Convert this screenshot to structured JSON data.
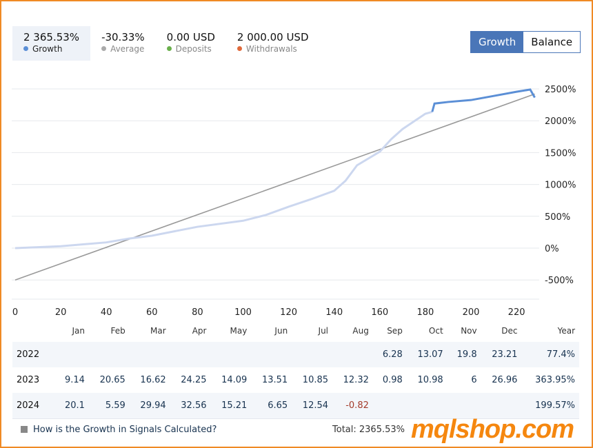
{
  "stats": [
    {
      "value": "2 365.53%",
      "label": "Growth",
      "color": "#5b8fd6"
    },
    {
      "value": "-30.33%",
      "label": "Average",
      "color": "#aaaaaa"
    },
    {
      "value": "0.00 USD",
      "label": "Deposits",
      "color": "#6ab04c"
    },
    {
      "value": "2 000.00 USD",
      "label": "Withdrawals",
      "color": "#e06a3b"
    }
  ],
  "toggle": {
    "growth": "Growth",
    "balance": "Balance"
  },
  "chart_data": {
    "type": "line",
    "xlim": [
      0,
      228
    ],
    "ylim": [
      -500,
      2500
    ],
    "x_ticks": [
      "0",
      "20",
      "40",
      "60",
      "80",
      "100",
      "120",
      "140",
      "160",
      "180",
      "200",
      "220"
    ],
    "y_ticks": [
      "2500%",
      "2000%",
      "1500%",
      "1000%",
      "500%",
      "0%",
      "-500%"
    ],
    "grid": true,
    "series": [
      {
        "name": "Growth",
        "color": "#5b8fd6",
        "points": [
          [
            0,
            0
          ],
          [
            20,
            30
          ],
          [
            40,
            90
          ],
          [
            50,
            150
          ],
          [
            60,
            195
          ],
          [
            80,
            335
          ],
          [
            100,
            430
          ],
          [
            110,
            520
          ],
          [
            120,
            650
          ],
          [
            130,
            770
          ],
          [
            140,
            900
          ],
          [
            145,
            1060
          ],
          [
            150,
            1300
          ],
          [
            160,
            1515
          ],
          [
            165,
            1710
          ],
          [
            170,
            1870
          ],
          [
            180,
            2110
          ],
          [
            183,
            2140
          ],
          [
            184,
            2270
          ],
          [
            190,
            2295
          ],
          [
            200,
            2325
          ],
          [
            210,
            2390
          ],
          [
            220,
            2455
          ],
          [
            226,
            2490
          ],
          [
            228,
            2365
          ]
        ]
      },
      {
        "name": "Average",
        "color": "#999999",
        "points": [
          [
            0,
            -500
          ],
          [
            228,
            2420
          ]
        ]
      }
    ]
  },
  "table": {
    "headers": [
      "",
      "Jan",
      "Feb",
      "Mar",
      "Apr",
      "May",
      "Jun",
      "Jul",
      "Aug",
      "Sep",
      "Oct",
      "Nov",
      "Dec",
      "Year"
    ],
    "rows": [
      [
        "2022",
        "",
        "",
        "",
        "",
        "",
        "",
        "",
        "",
        "6.28",
        "13.07",
        "19.8",
        "23.21",
        "77.4%"
      ],
      [
        "2023",
        "9.14",
        "20.65",
        "16.62",
        "24.25",
        "14.09",
        "13.51",
        "10.85",
        "12.32",
        "0.98",
        "10.98",
        "6",
        "26.96",
        "363.95%"
      ],
      [
        "2024",
        "20.1",
        "5.59",
        "29.94",
        "32.56",
        "15.21",
        "6.65",
        "12.54",
        "-0.82",
        "",
        "",
        "",
        "",
        "199.57%"
      ]
    ]
  },
  "footer": {
    "link": "How is the Growth in Signals Calculated?",
    "total": "Total: 2365.53%"
  },
  "watermark": "mqlshop.com"
}
